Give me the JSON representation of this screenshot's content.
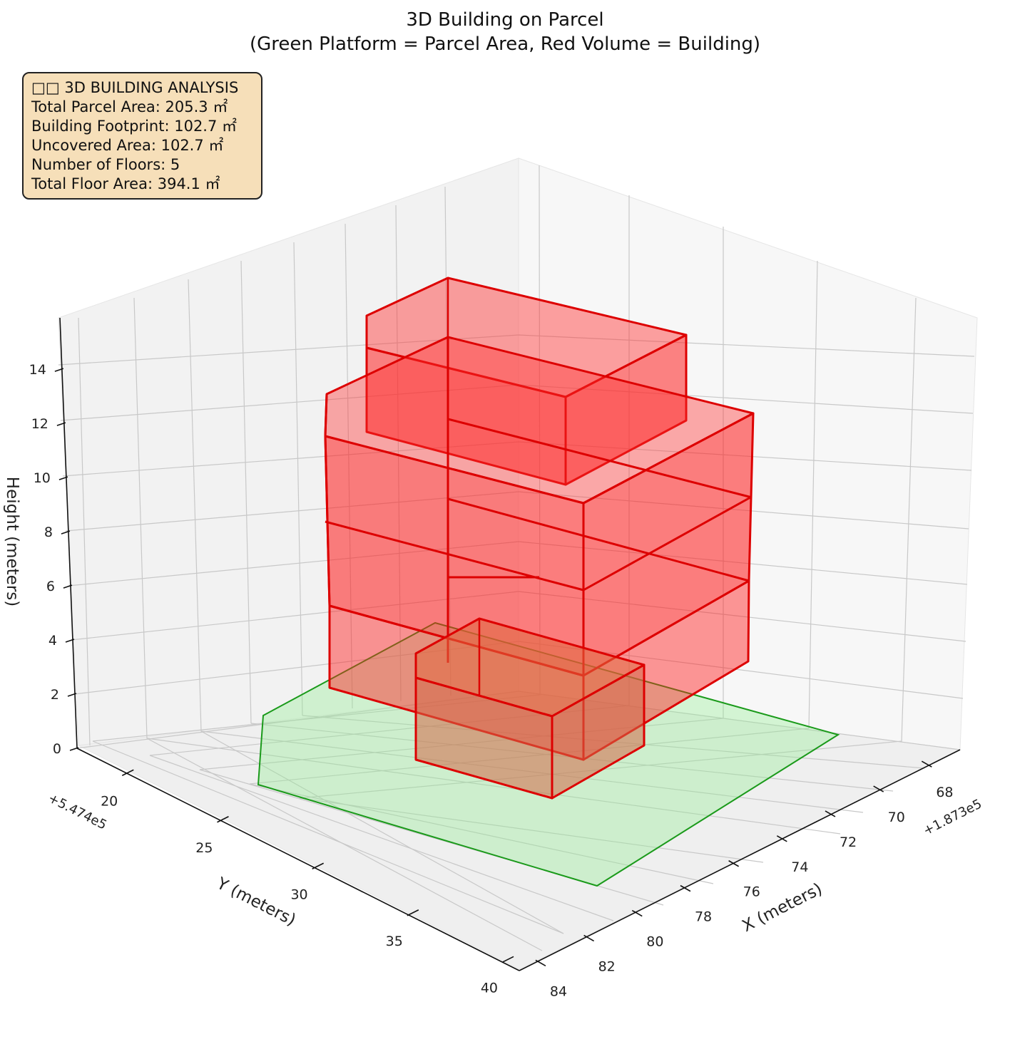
{
  "title": {
    "line1": "3D Building on Parcel",
    "line2": "(Green Platform = Parcel Area, Red Volume = Building)"
  },
  "info": {
    "heading": "□□ 3D BUILDING ANALYSIS",
    "parcel_area": "Total Parcel Area: 205.3 ㎡",
    "footprint": "Building Footprint: 102.7 ㎡",
    "uncovered": "Uncovered Area: 102.7 ㎡",
    "floors": "Number of Floors: 5",
    "floor_area": "Total Floor Area: 394.1 ㎡"
  },
  "axes": {
    "x_label": "X (meters)",
    "y_label": "Y (meters)",
    "z_label": "Height (meters)",
    "x_offset": "+1.873e5",
    "y_offset": "+5.474e5",
    "x_ticks": [
      "68",
      "70",
      "72",
      "74",
      "76",
      "78",
      "80",
      "82",
      "84"
    ],
    "y_ticks": [
      "20",
      "25",
      "30",
      "35",
      "40"
    ],
    "z_ticks": [
      "0",
      "2",
      "4",
      "6",
      "8",
      "10",
      "12",
      "14"
    ]
  },
  "chart_data": {
    "type": "3d-polygons",
    "x_range": [
      67,
      84.5
    ],
    "y_range": [
      18,
      41
    ],
    "z_range": [
      0,
      15
    ],
    "parcel": {
      "name": "Parcel Area",
      "color": "#90ee90",
      "z": 0,
      "polygon": [
        [
          68.5,
          30.5
        ],
        [
          83.5,
          19.2
        ],
        [
          83.5,
          19.7
        ],
        [
          73.0,
          40.5
        ],
        [
          68.5,
          30.5
        ]
      ]
    },
    "building": {
      "name": "Building",
      "color": "#ff0000",
      "floors": [
        {
          "floor": 1,
          "z_bottom": 0,
          "z_top": 3,
          "footprint": [
            [
              72.0,
              35.0
            ],
            [
              78.0,
              35.0
            ],
            [
              78.0,
              30.5
            ],
            [
              72.0,
              30.5
            ]
          ]
        },
        {
          "floor": 2,
          "z_bottom": 3,
          "z_top": 6,
          "footprint": [
            [
              72.0,
              30.5
            ],
            [
              78.0,
              30.5
            ],
            [
              78.0,
              20.0
            ],
            [
              72.0,
              20.0
            ]
          ]
        },
        {
          "floor": 3,
          "z_bottom": 6,
          "z_top": 9,
          "footprint": [
            [
              72.0,
              30.5
            ],
            [
              78.0,
              30.5
            ],
            [
              78.0,
              20.0
            ],
            [
              72.0,
              20.0
            ]
          ]
        },
        {
          "floor": 4,
          "z_bottom": 9,
          "z_top": 12,
          "footprint": [
            [
              72.0,
              30.5
            ],
            [
              78.0,
              30.5
            ],
            [
              78.0,
              20.0
            ],
            [
              72.0,
              20.0
            ]
          ]
        },
        {
          "floor": 5,
          "z_bottom": 12,
          "z_top": 15,
          "footprint": [
            [
              72.0,
              26.0
            ],
            [
              76.5,
              26.0
            ],
            [
              76.5,
              19.5
            ],
            [
              72.0,
              19.5
            ]
          ]
        }
      ]
    },
    "grid": true
  }
}
